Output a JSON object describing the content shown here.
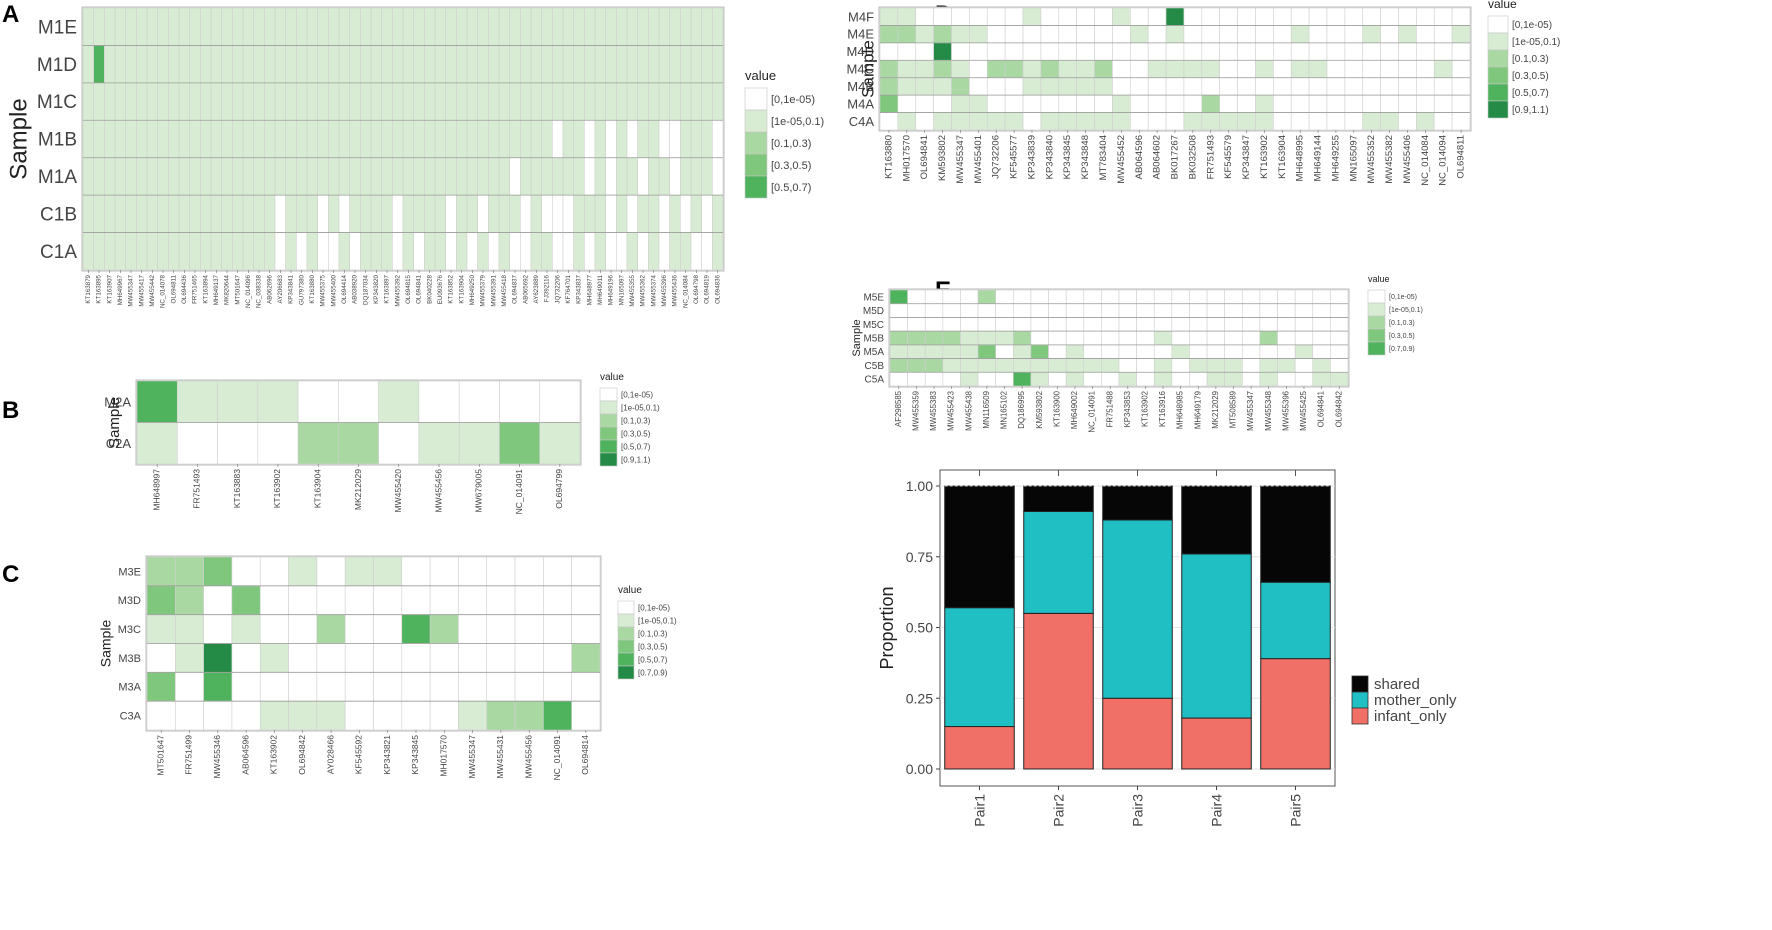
{
  "colors": {
    "c0": "#ffffff",
    "c1": "#d7ecd2",
    "c2": "#a9d8a3",
    "c3": "#7fc77c",
    "c4": "#4fb25c",
    "c5": "#238b45",
    "shared": "#060606",
    "mother_only": "#1fbfc4",
    "infant_only": "#f07068"
  },
  "chart_data": [
    {
      "panel": "A",
      "type": "heatmap",
      "ylabel": "Sample",
      "legend_title": "value",
      "legend": [
        "[0,1e-05)",
        "[1e-05,0.1)",
        "[0.1,0.3)",
        "[0.3,0.5)",
        "[0.5,0.7)"
      ],
      "rows": [
        "M1E",
        "M1D",
        "M1C",
        "M1B",
        "M1A",
        "C1B",
        "C1A"
      ],
      "columns": [
        "KT163879",
        "KT163895",
        "KT163907",
        "MH649967",
        "MW455347",
        "MW455417",
        "MW455442",
        "NC_014078",
        "OL694811",
        "OL694436",
        "FR751465",
        "KT163894",
        "MH649137",
        "MK820644",
        "MT501647",
        "NC_014096",
        "NC_038338",
        "AB062696",
        "AY206683",
        "KP343841",
        "GU797380",
        "KT163880",
        "MW455375",
        "MW455400",
        "OL694414",
        "AB038920",
        "DQ187034",
        "KP343820",
        "KT163897",
        "MW455392",
        "OL694815",
        "OL694841",
        "BK040228",
        "EU093676",
        "KT163852",
        "KT163904",
        "MH649250",
        "MW455379",
        "MW455391",
        "MW455418",
        "OL694837",
        "AB065692",
        "AY623889",
        "FJ392116",
        "JQ732206",
        "KF764701",
        "KP343837",
        "MH648977",
        "MH649011",
        "MH649196",
        "MN165097",
        "MW455355",
        "MW455362",
        "MW455374",
        "MW455396",
        "MW455436",
        "NC_014084",
        "OL694798",
        "OL694819",
        "OL694836"
      ],
      "matrix": [
        "111111111111111111111111111111111111111111111111111111111111",
        "141111111111111111111111111111111111111111111111111111111111",
        "111111111111111111111111111111111111111111111111111111111111",
        "111111111111111111111111111111111111111111110110101011001110",
        "111111111111111111111111111111111111111101111110101101101110",
        "111111111111111111011101011110111101101110100011101011010101",
        "111111111111111111010100101110101101010100110010100101011001"
      ]
    },
    {
      "panel": "B",
      "type": "heatmap",
      "ylabel": "Sample",
      "legend_title": "value",
      "legend": [
        "[0,1e-05)",
        "[1e-05,0.1)",
        "[0.1,0.3)",
        "[0.3,0.5)",
        "[0.5,0.7)",
        "[0.9,1.1)"
      ],
      "rows": [
        "M2A",
        "C2A"
      ],
      "columns": [
        "MH648997",
        "FR751493",
        "KT163883",
        "KT163902",
        "KT163904",
        "MK212029",
        "MW455420",
        "MW455456",
        "MW679005",
        "NC_014091",
        "OL694799"
      ],
      "matrix": [
        [
          4,
          1,
          1,
          1,
          0,
          0,
          1,
          0,
          0,
          0,
          0
        ],
        [
          1,
          0,
          0,
          0,
          2,
          2,
          0,
          1,
          1,
          3,
          1
        ]
      ]
    },
    {
      "panel": "C",
      "type": "heatmap",
      "ylabel": "Sample",
      "legend_title": "value",
      "legend": [
        "[0,1e-05)",
        "[1e-05,0.1)",
        "[0.1,0.3)",
        "[0.3,0.5)",
        "[0.5,0.7)",
        "[0.7,0.9)"
      ],
      "rows": [
        "M3E",
        "M3D",
        "M3C",
        "M3B",
        "M3A",
        "C3A"
      ],
      "columns": [
        "MT501647",
        "FR751499",
        "MW455346",
        "AB064596",
        "KT163902",
        "OL694842",
        "AY028466",
        "KF545592",
        "KP343821",
        "KP343845",
        "MH017570",
        "MW455347",
        "MW455431",
        "MW455456",
        "NC_014091",
        "OL694814"
      ],
      "matrix": [
        [
          2,
          2,
          3,
          0,
          0,
          1,
          0,
          1,
          1,
          0,
          0,
          0,
          0,
          0,
          0,
          0
        ],
        [
          3,
          2,
          0,
          3,
          0,
          0,
          0,
          0,
          0,
          0,
          0,
          0,
          0,
          0,
          0,
          0
        ],
        [
          1,
          1,
          0,
          1,
          0,
          0,
          2,
          0,
          0,
          4,
          2,
          0,
          0,
          0,
          0,
          0
        ],
        [
          0,
          1,
          5,
          0,
          1,
          0,
          0,
          0,
          0,
          0,
          0,
          0,
          0,
          0,
          0,
          2
        ],
        [
          3,
          0,
          4,
          0,
          0,
          0,
          0,
          0,
          0,
          0,
          0,
          0,
          0,
          0,
          0,
          0
        ],
        [
          0,
          0,
          0,
          0,
          1,
          1,
          1,
          0,
          0,
          0,
          0,
          1,
          2,
          2,
          4,
          0
        ]
      ]
    },
    {
      "panel": "D",
      "type": "heatmap",
      "ylabel": "Sample",
      "legend_title": "value",
      "legend": [
        "[0,1e-05)",
        "[1e-05,0.1)",
        "[0.1,0.3)",
        "[0.3,0.5)",
        "[0.5,0.7)",
        "[0.9,1.1)"
      ],
      "rows": [
        "M4F",
        "M4E",
        "M4D",
        "M4C",
        "M4B",
        "M4A",
        "C4A"
      ],
      "columns": [
        "KT163880",
        "MH017570",
        "OL694841",
        "KM593802",
        "MW455347",
        "MW455401",
        "JQ732206",
        "KF545577",
        "KP343839",
        "KP343840",
        "KP343845",
        "KP343848",
        "MT783404",
        "MW455452",
        "AB064596",
        "AB064602",
        "BK017267",
        "BK032508",
        "FR751493",
        "KF545579",
        "KP343847",
        "KT163902",
        "KT163904",
        "MH648995",
        "MH649144",
        "MH649255",
        "MN165097",
        "MW455352",
        "MW455382",
        "MW455406",
        "NC_014084",
        "NC_014094",
        "OL694811"
      ],
      "matrix": [
        [
          1,
          1,
          0,
          0,
          0,
          0,
          0,
          0,
          1,
          0,
          0,
          0,
          0,
          1,
          0,
          0,
          5,
          0,
          0,
          0,
          0,
          0,
          0,
          0,
          0,
          0,
          0,
          0,
          0,
          0,
          0,
          0,
          0
        ],
        [
          2,
          2,
          1,
          2,
          1,
          1,
          0,
          0,
          0,
          0,
          0,
          0,
          0,
          0,
          1,
          0,
          1,
          0,
          0,
          0,
          0,
          0,
          0,
          1,
          0,
          0,
          0,
          1,
          0,
          1,
          0,
          0,
          1
        ],
        [
          0,
          0,
          0,
          5,
          0,
          0,
          0,
          0,
          0,
          0,
          0,
          0,
          0,
          0,
          0,
          0,
          0,
          0,
          0,
          0,
          0,
          0,
          0,
          0,
          0,
          0,
          0,
          0,
          0,
          0,
          0,
          0,
          0
        ],
        [
          2,
          1,
          1,
          2,
          1,
          0,
          2,
          2,
          1,
          2,
          1,
          1,
          2,
          0,
          0,
          1,
          1,
          1,
          1,
          0,
          0,
          1,
          0,
          1,
          1,
          0,
          0,
          0,
          0,
          0,
          0,
          1,
          0
        ],
        [
          2,
          1,
          1,
          1,
          2,
          0,
          0,
          0,
          1,
          1,
          1,
          1,
          1,
          0,
          0,
          0,
          0,
          0,
          0,
          0,
          0,
          0,
          0,
          0,
          0,
          0,
          0,
          0,
          0,
          0,
          0,
          0,
          0
        ],
        [
          3,
          0,
          0,
          0,
          1,
          1,
          0,
          0,
          0,
          0,
          0,
          0,
          0,
          1,
          0,
          0,
          0,
          0,
          2,
          0,
          0,
          1,
          0,
          0,
          0,
          0,
          0,
          0,
          0,
          0,
          0,
          0,
          0
        ],
        [
          0,
          1,
          0,
          1,
          1,
          1,
          1,
          1,
          0,
          1,
          1,
          1,
          1,
          1,
          0,
          0,
          0,
          1,
          1,
          1,
          1,
          1,
          0,
          0,
          0,
          0,
          0,
          1,
          1,
          0,
          1,
          0,
          0
        ]
      ]
    },
    {
      "panel": "E",
      "type": "heatmap",
      "ylabel": "Sample",
      "legend_title": "value",
      "legend": [
        "[0,1e-05)",
        "[1e-05,0.1)",
        "[0.1,0.3)",
        "[0.3,0.5)",
        "[0.7,0.9)"
      ],
      "rows": [
        "M5E",
        "M5D",
        "M5C",
        "M5B",
        "M5A",
        "C5B",
        "C5A"
      ],
      "columns": [
        "AF298585",
        "MW455359",
        "MW455383",
        "MW455423",
        "MW455438",
        "MN116509",
        "MN165102",
        "DQ186995",
        "KM593802",
        "KT163900",
        "MH649002",
        "NC_014091",
        "FR751488",
        "KP343853",
        "KT163902",
        "KT163916",
        "MH648985",
        "MH649179",
        "MK212029",
        "MT508589",
        "MW455347",
        "MW455348",
        "MW455396",
        "MW455425",
        "OL694841",
        "OL694842"
      ],
      "matrix": [
        [
          4,
          0,
          0,
          0,
          0,
          2,
          0,
          0,
          0,
          0,
          0,
          0,
          0,
          0,
          0,
          0,
          0,
          0,
          0,
          0,
          0,
          0,
          0,
          0,
          0,
          0
        ],
        [
          0,
          0,
          0,
          0,
          0,
          0,
          0,
          0,
          0,
          0,
          0,
          0,
          0,
          0,
          0,
          0,
          0,
          0,
          0,
          0,
          0,
          0,
          0,
          0,
          0,
          0
        ],
        [
          0,
          0,
          0,
          0,
          0,
          0,
          0,
          0,
          0,
          0,
          0,
          0,
          0,
          0,
          0,
          0,
          0,
          0,
          0,
          0,
          0,
          0,
          0,
          0,
          0,
          0
        ],
        [
          2,
          2,
          2,
          2,
          1,
          1,
          1,
          2,
          0,
          0,
          0,
          0,
          0,
          0,
          0,
          1,
          0,
          0,
          0,
          0,
          0,
          2,
          0,
          0,
          0,
          0
        ],
        [
          1,
          1,
          1,
          1,
          1,
          3,
          0,
          1,
          3,
          0,
          1,
          0,
          0,
          0,
          0,
          0,
          1,
          0,
          0,
          0,
          0,
          0,
          0,
          1,
          0,
          0
        ],
        [
          2,
          2,
          2,
          1,
          1,
          1,
          1,
          1,
          1,
          1,
          1,
          1,
          1,
          0,
          0,
          1,
          0,
          1,
          1,
          1,
          0,
          1,
          1,
          0,
          1,
          0
        ],
        [
          0,
          0,
          0,
          0,
          1,
          0,
          0,
          4,
          1,
          0,
          1,
          0,
          0,
          1,
          0,
          1,
          0,
          0,
          1,
          1,
          0,
          1,
          0,
          0,
          1,
          1
        ]
      ]
    },
    {
      "panel": "F",
      "type": "bar",
      "stacked": true,
      "ylabel": "Proportion",
      "xlabel": "",
      "ylim": [
        0,
        1
      ],
      "yticks": [
        "0.00",
        "0.25",
        "0.50",
        "0.75",
        "1.00"
      ],
      "categories": [
        "Pair1",
        "Pair2",
        "Pair3",
        "Pair4",
        "Pair5"
      ],
      "series": [
        {
          "name": "infant_only",
          "values": [
            0.15,
            0.55,
            0.25,
            0.18,
            0.39
          ]
        },
        {
          "name": "mother_only",
          "values": [
            0.42,
            0.36,
            0.63,
            0.58,
            0.27
          ]
        },
        {
          "name": "shared",
          "values": [
            0.43,
            0.09,
            0.12,
            0.24,
            0.34
          ]
        }
      ],
      "legend": [
        "shared",
        "mother_only",
        "infant_only"
      ]
    }
  ]
}
